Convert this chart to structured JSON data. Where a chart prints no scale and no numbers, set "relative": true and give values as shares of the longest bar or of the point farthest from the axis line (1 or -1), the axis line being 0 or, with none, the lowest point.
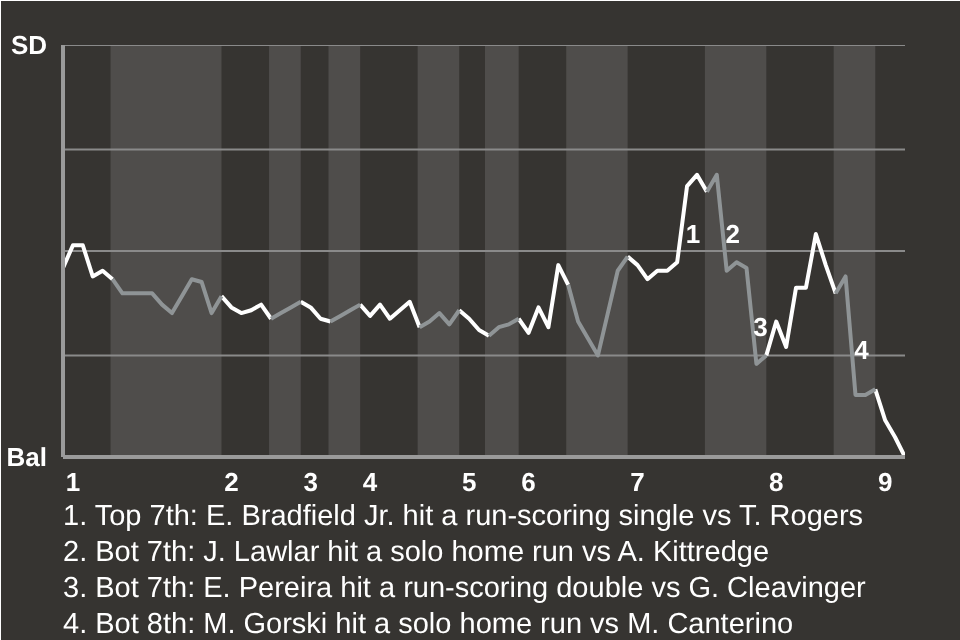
{
  "chart_data": {
    "type": "line",
    "relative": true,
    "categories": [
      null,
      "1",
      null,
      null,
      null,
      null,
      null,
      null,
      null,
      null,
      null,
      null,
      null,
      null,
      null,
      null,
      null,
      "2",
      null,
      null,
      null,
      null,
      null,
      null,
      null,
      "3",
      null,
      null,
      null,
      null,
      null,
      "4",
      null,
      null,
      null,
      null,
      null,
      null,
      null,
      null,
      null,
      "5",
      null,
      null,
      null,
      null,
      null,
      "6",
      null,
      null,
      null,
      null,
      null,
      null,
      null,
      null,
      null,
      null,
      "7",
      null,
      null,
      null,
      null,
      null,
      null,
      null,
      null,
      null,
      null,
      null,
      null,
      null,
      "8",
      null,
      null,
      null,
      null,
      null,
      null,
      null,
      null,
      null,
      null,
      "9",
      null,
      null
    ],
    "ref_lines": [
      {
        "axis": "y",
        "value": 0.36,
        "color": "#8a8a8a"
      },
      {
        "axis": "y",
        "value": 0.73,
        "color": "#8a8a8a"
      },
      {
        "axis": "y",
        "value": 1.09,
        "color": "#8a8a8a"
      },
      {
        "axis": "y",
        "value": 1.46,
        "color": "#8a8a8a"
      }
    ],
    "series": [
      {
        "color": "#ffffff",
        "values": [
          0.67,
          0.75,
          0.75,
          0.64,
          0.66,
          0.63,
          null,
          null,
          null,
          null,
          null,
          null,
          null,
          null,
          null,
          null,
          0.57,
          0.53,
          0.51,
          0.52,
          0.54,
          0.49,
          null,
          null,
          0.55,
          0.53,
          0.49,
          0.48,
          null,
          null,
          0.54,
          0.5,
          0.54,
          0.49,
          0.52,
          0.55,
          0.46,
          null,
          null,
          null,
          0.52,
          0.49,
          0.45,
          0.43,
          null,
          null,
          0.49,
          0.44,
          0.53,
          0.46,
          0.68,
          0.61,
          null,
          null,
          null,
          null,
          null,
          0.71,
          0.68,
          0.63,
          0.66,
          0.66,
          0.69,
          0.96,
          1,
          0.94,
          null,
          null,
          null,
          null,
          null,
          0.36,
          0.48,
          0.39,
          0.6,
          0.6,
          0.79,
          0.68,
          0.58,
          null,
          null,
          null,
          0.24,
          0.13,
          0.07,
          0
        ]
      },
      {
        "color": "#8f9496",
        "values": [
          null,
          null,
          null,
          null,
          null,
          0.63,
          0.58,
          0.58,
          0.58,
          0.58,
          0.54,
          0.51,
          0.57,
          0.63,
          0.62,
          0.51,
          0.57,
          null,
          null,
          null,
          null,
          0.49,
          0.51,
          0.53,
          0.55,
          null,
          null,
          0.48,
          0.5,
          0.52,
          0.54,
          null,
          null,
          null,
          null,
          null,
          0.46,
          0.48,
          0.51,
          0.47,
          0.52,
          null,
          null,
          0.43,
          0.46,
          0.47,
          0.49,
          null,
          null,
          null,
          null,
          0.61,
          0.48,
          0.42,
          0.36,
          0.51,
          0.66,
          0.71,
          null,
          null,
          null,
          null,
          null,
          null,
          null,
          0.94,
          1,
          0.66,
          0.69,
          0.67,
          0.33,
          0.36,
          null,
          null,
          null,
          null,
          null,
          null,
          0.58,
          0.64,
          0.22,
          0.22,
          0.24,
          null,
          null,
          null
        ]
      }
    ],
    "annotations": [
      "SD",
      "Bal",
      "1",
      "2",
      "3",
      "4",
      "1. Top 7th: E. Bradfield Jr. hit a run-scoring single vs T. Rogers",
      "2. Bot 7th: J. Lawlar hit a solo home run vs A. Kittredge",
      "3. Bot 7th: E. Pereira hit a run-scoring double vs G. Cleavinger",
      "4. Bot 8th: M. Gorski hit a solo home run vs M. Canterino"
    ]
  }
}
